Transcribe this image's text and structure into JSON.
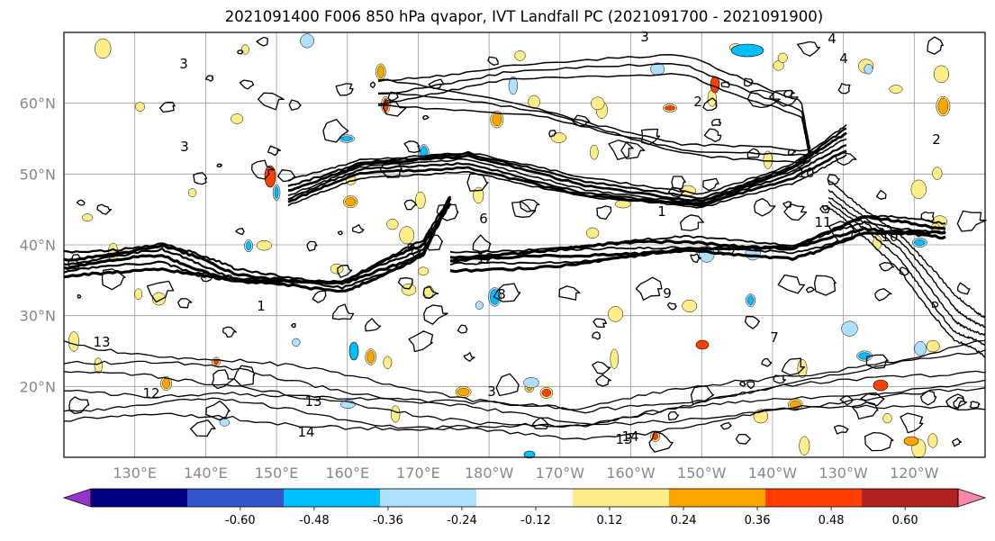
{
  "title": "2021091400 F006 850 hPa qvapor, IVT Landfall PC (2021091700 - 2021091900)",
  "map": {
    "lat_range": [
      10,
      70
    ],
    "lon_range": [
      120,
      250
    ],
    "lat_ticks": [
      "20°N",
      "30°N",
      "40°N",
      "50°N",
      "60°N"
    ],
    "lon_ticks": [
      "130°E",
      "140°E",
      "150°E",
      "160°E",
      "170°E",
      "180°W",
      "170°W",
      "160°W",
      "150°W",
      "140°W",
      "130°W",
      "120°W"
    ],
    "grid": true,
    "contour_labels": [
      "3",
      "4",
      "3",
      "4",
      "2",
      "3",
      "6",
      "8",
      "9",
      "10",
      "11",
      "12",
      "13",
      "14",
      "13",
      "12",
      "10",
      "13",
      "14",
      "2",
      "3",
      "7",
      "1",
      "1"
    ]
  },
  "colorbar": {
    "extend": "both",
    "colors": [
      "#9933cc",
      "#000080",
      "#3355cc",
      "#00bfff",
      "#b0e0ff",
      "#ffffff",
      "#ffee88",
      "#ffa500",
      "#ff4000",
      "#b22222",
      "#ff88aa"
    ],
    "tick_labels": [
      "-0.60",
      "-0.48",
      "-0.36",
      "-0.24",
      "-0.12",
      "0.12",
      "0.24",
      "0.36",
      "0.48",
      "0.60"
    ]
  },
  "colors": {
    "contour": "#000000",
    "grid": "#9a9a9a",
    "axis_label": "#888888"
  }
}
